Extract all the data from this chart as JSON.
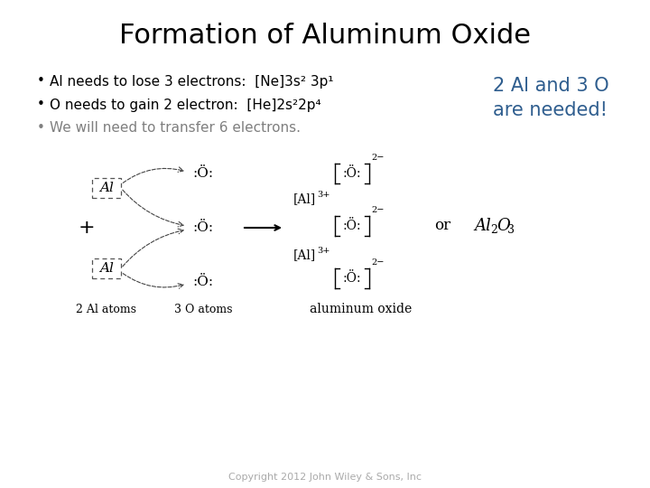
{
  "title": "Formation of Aluminum Oxide",
  "title_fontsize": 22,
  "title_weight": "normal",
  "bg_color": "#ffffff",
  "bullet_color": "#000000",
  "bullet_fontsize": 11,
  "bullet3_color": "#7f7f7f",
  "bullets": [
    "Al needs to lose 3 electrons:  [Ne]3s² 3p¹",
    "O needs to gain 2 electron:  [He]2s²2p⁴",
    "We will need to transfer 6 electrons."
  ],
  "highlight_text_line1": "2 Al and 3 O",
  "highlight_text_line2": "are needed!",
  "highlight_color": "#2e5d8e",
  "highlight_fontsize": 15,
  "copyright": "Copyright 2012 John Wiley & Sons, Inc",
  "copyright_fontsize": 8,
  "copyright_color": "#aaaaaa"
}
